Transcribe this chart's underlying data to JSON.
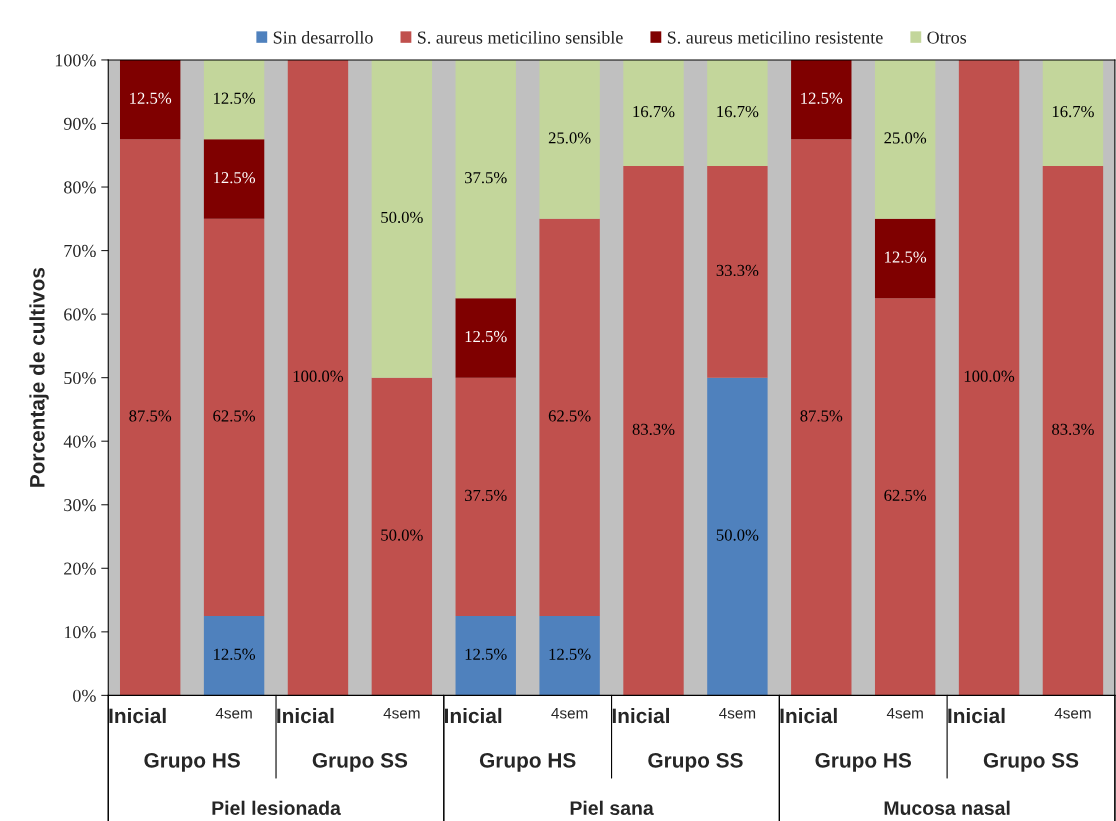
{
  "chart_data": {
    "type": "bar",
    "stacked": true,
    "ylabel": "Porcentaje de cultivos",
    "categories": [
      "Inicial",
      "4sem",
      "Inicial",
      "4sem",
      "Inicial",
      "4sem",
      "Inicial",
      "4sem",
      "Inicial",
      "4sem",
      "Inicial",
      "4sem"
    ],
    "annotations": [
      "Grupo HS",
      "Grupo SS",
      "Grupo HS",
      "Grupo SS",
      "Grupo HS",
      "Grupo SS",
      "Piel lesionada",
      "Piel sana",
      "Mucosa nasal"
    ],
    "series": [
      {
        "name": "Sin desarrollo",
        "color": "#4f81bd",
        "values": [
          0,
          12.5,
          0,
          0,
          12.5,
          12.5,
          0,
          50,
          0,
          0,
          0,
          0
        ],
        "value_labels": [
          null,
          "12.5%",
          null,
          null,
          "12.5%",
          "12.5%",
          null,
          "50.0%",
          null,
          null,
          null,
          null
        ]
      },
      {
        "name": "S. aureus meticilino sensible",
        "color": "#c0504d",
        "values": [
          87.5,
          62.5,
          100,
          50,
          37.5,
          62.5,
          83.3,
          33.3,
          87.5,
          62.5,
          100,
          83.3
        ],
        "value_labels": [
          "87.5%",
          "62.5%",
          "100.0%",
          "50.0%",
          "37.5%",
          "62.5%",
          "83.3%",
          "33.3%",
          "87.5%",
          "62.5%",
          "100.0%",
          "83.3%"
        ]
      },
      {
        "name": "S. aureus meticilino resistente",
        "color": "#7f0000",
        "values": [
          12.5,
          12.5,
          0,
          0,
          12.5,
          0,
          0,
          0,
          12.5,
          12.5,
          0,
          0
        ],
        "value_labels": [
          "12.5%",
          "12.5%",
          null,
          null,
          "12.5%",
          null,
          null,
          null,
          "12.5%",
          "12.5%",
          null,
          null
        ]
      },
      {
        "name": "Otros",
        "color": "#c3d69b",
        "values": [
          0,
          12.5,
          0,
          50,
          37.5,
          25,
          16.7,
          16.7,
          0,
          25,
          0,
          16.7
        ],
        "value_labels": [
          null,
          "12.5%",
          null,
          "50.0%",
          "37.5%",
          "25.0%",
          "16.7%",
          "16.7%",
          null,
          "25.0%",
          null,
          "16.7%"
        ]
      }
    ],
    "ylim": [
      0,
      100
    ],
    "yticks": [
      {
        "value": 0,
        "label": "0%"
      },
      {
        "value": 10,
        "label": "10%"
      },
      {
        "value": 20,
        "label": "20%"
      },
      {
        "value": 30,
        "label": "30%"
      },
      {
        "value": 40,
        "label": "40%"
      },
      {
        "value": 50,
        "label": "50%"
      },
      {
        "value": 60,
        "label": "60%"
      },
      {
        "value": 70,
        "label": "70%"
      },
      {
        "value": 80,
        "label": "80%"
      },
      {
        "value": 90,
        "label": "90%"
      },
      {
        "value": 100,
        "label": "100%"
      }
    ],
    "legend": "top",
    "grid": false
  }
}
